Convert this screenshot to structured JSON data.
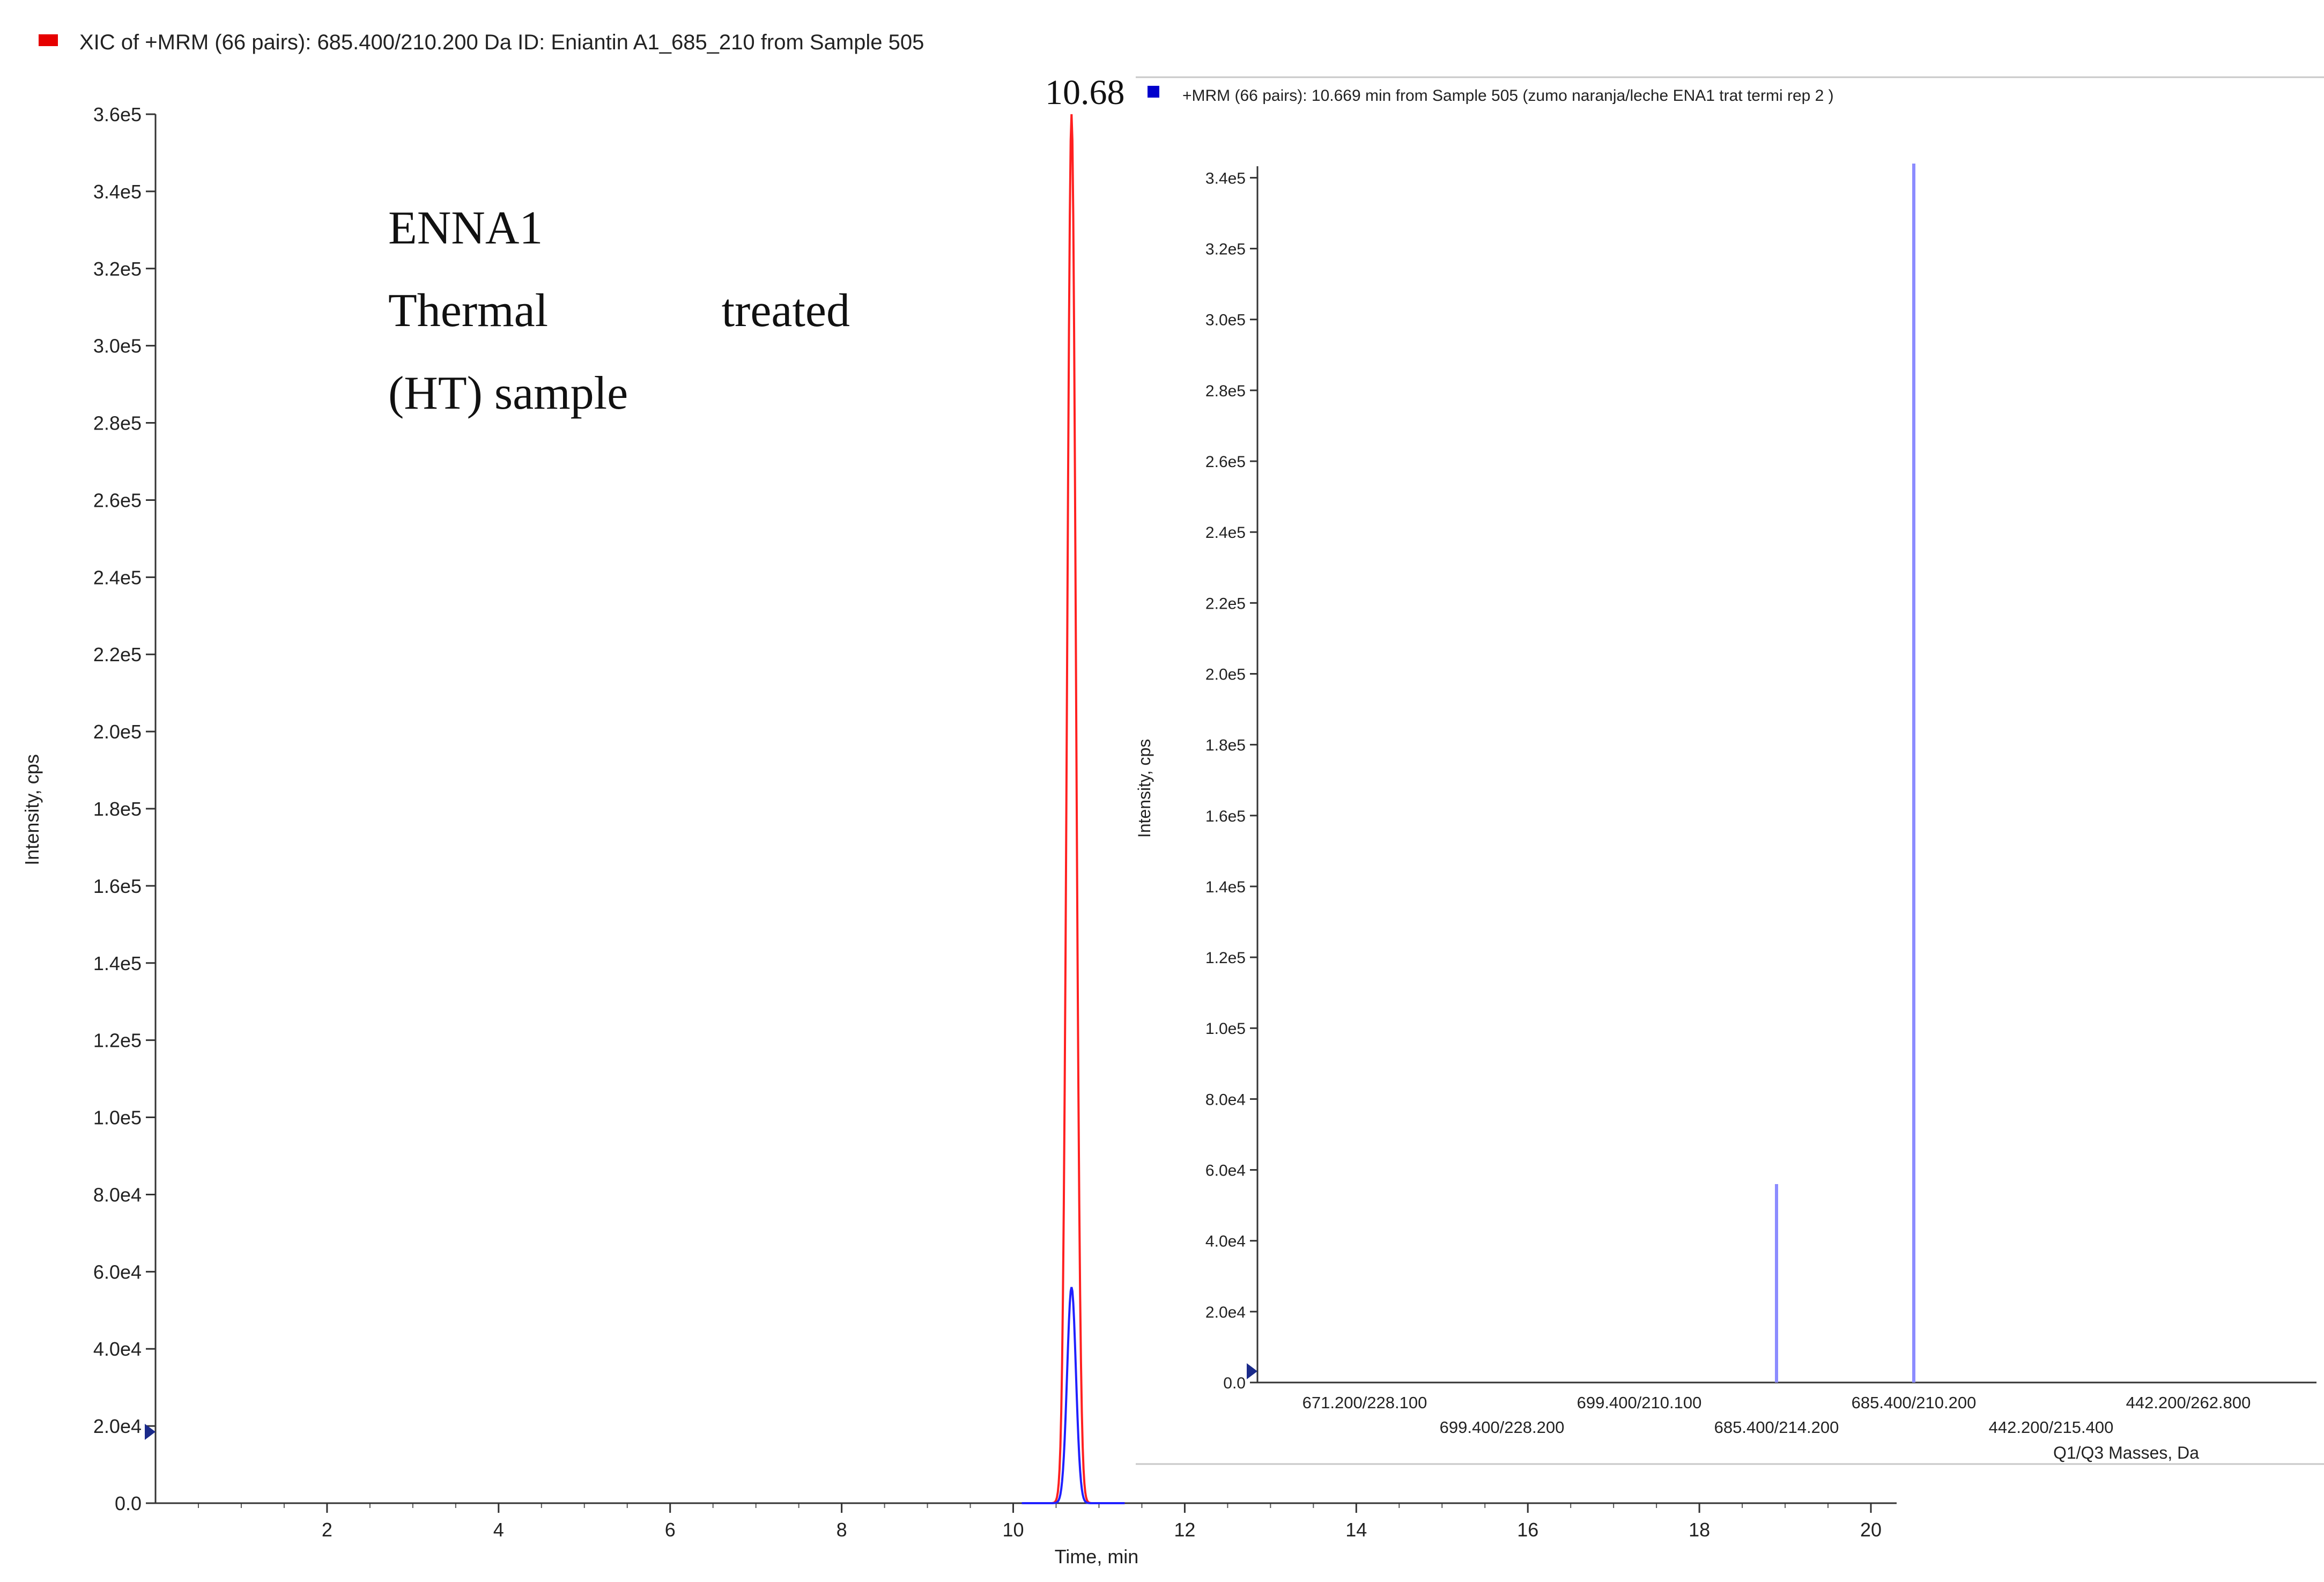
{
  "left_chart": {
    "type": "line",
    "title": "XIC of +MRM (66 pairs): 685.400/210.200 Da ID: Eniantin A1_685_210 from Sample 505",
    "legend_color": "#e60000",
    "xlabel": "Time, min",
    "ylabel": "Intensity, cps",
    "xlim": [
      0,
      20.3
    ],
    "ylim": [
      0,
      360000
    ],
    "x_ticks": [
      "2",
      "4",
      "6",
      "8",
      "10",
      "12",
      "14",
      "16",
      "18",
      "20"
    ],
    "x_tick_values": [
      2,
      4,
      6,
      8,
      10,
      12,
      14,
      16,
      18,
      20
    ],
    "y_ticks": [
      "0.0",
      "2.0e4",
      "4.0e4",
      "6.0e4",
      "8.0e4",
      "1.0e5",
      "1.2e5",
      "1.4e5",
      "1.6e5",
      "1.8e5",
      "2.0e5",
      "2.2e5",
      "2.4e5",
      "2.6e5",
      "2.8e5",
      "3.0e5",
      "3.2e5",
      "3.4e5",
      "3.6e5"
    ],
    "y_tick_values": [
      0,
      20000,
      40000,
      60000,
      80000,
      100000,
      120000,
      140000,
      160000,
      180000,
      200000,
      220000,
      240000,
      260000,
      280000,
      300000,
      320000,
      340000,
      360000
    ],
    "peak_label": "10.68",
    "peak_x": 10.68,
    "series": [
      {
        "color": "#ff2020",
        "peak_time": 10.68,
        "peak_intensity": 360000,
        "width_min": 0.11
      },
      {
        "color": "#2020ff",
        "peak_time": 10.68,
        "peak_intensity": 56000,
        "width_min": 0.11
      }
    ]
  },
  "annotation": {
    "line1": "ENNA1",
    "line2a": "Thermal",
    "line2b": "treated",
    "line3": "(HT) sample"
  },
  "right_chart": {
    "type": "bar",
    "title": "+MRM (66 pairs): 10.669 min from Sample 505 (zumo naranja/leche ENA1 trat termi rep 2 )",
    "legend_color": "#0000cc",
    "bar_color": "#8c8cff",
    "xlabel": "Q1/Q3 Masses, Da",
    "ylabel": "Intensity, cps",
    "ylim": [
      0,
      344000
    ],
    "categories": [
      "671.200/228.100",
      "699.400/228.200",
      "699.400/210.100",
      "685.400/214.200",
      "685.400/210.200",
      "442.200/215.400",
      "442.200/262.800"
    ],
    "category_rows": [
      0,
      1,
      0,
      1,
      0,
      1,
      0
    ],
    "values": [
      0,
      0,
      0,
      56000,
      344000,
      0,
      0
    ],
    "y_ticks": [
      "0.0",
      "2.0e4",
      "4.0e4",
      "6.0e4",
      "8.0e4",
      "1.0e5",
      "1.2e5",
      "1.4e5",
      "1.6e5",
      "1.8e5",
      "2.0e5",
      "2.2e5",
      "2.4e5",
      "2.6e5",
      "2.8e5",
      "3.0e5",
      "3.2e5",
      "3.4e5"
    ],
    "y_tick_values": [
      0,
      20000,
      40000,
      60000,
      80000,
      100000,
      120000,
      140000,
      160000,
      180000,
      200000,
      220000,
      240000,
      260000,
      280000,
      300000,
      320000,
      340000
    ]
  }
}
